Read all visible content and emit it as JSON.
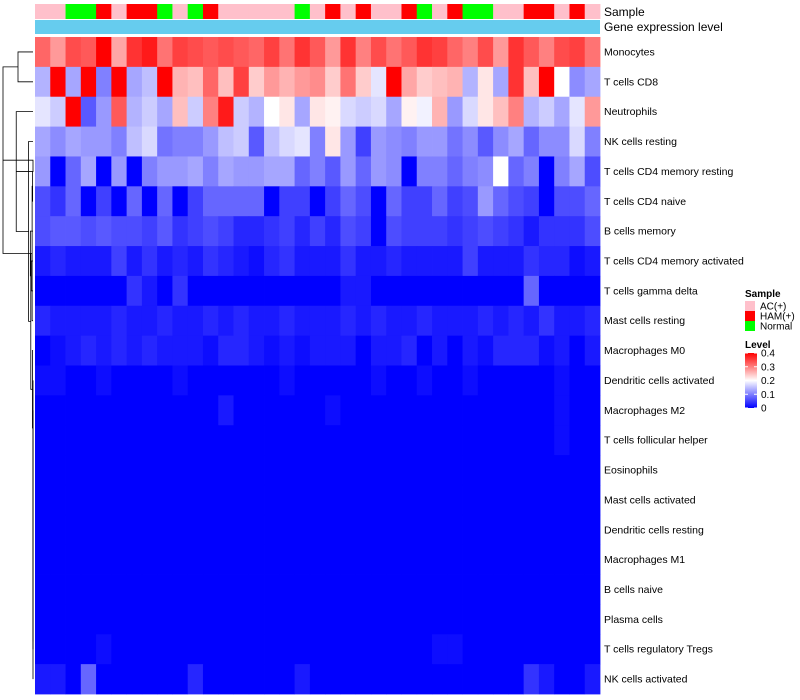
{
  "chart_data": {
    "type": "heatmap",
    "title": "",
    "annotation_rows": [
      {
        "label": "Sample",
        "key": "sample"
      },
      {
        "label": "Gene expression level",
        "key": "gene_expression"
      }
    ],
    "annotation_gene_expression_color": "#66ccee",
    "row_labels": [
      "Monocytes",
      "T cells CD8",
      "Neutrophils",
      "NK cells resting",
      "T cells CD4 memory resting",
      "T cells CD4 naive",
      "B cells memory",
      "T cells CD4 memory activated",
      "T cells gamma delta",
      "Mast cells resting",
      "Macrophages M0",
      "Dendritic cells activated",
      "Macrophages M2",
      "T cells follicular helper",
      "Eosinophils",
      "Mast cells activated",
      "Dendritic cells resting",
      "Macrophages M1",
      "B cells naive",
      "Plasma cells",
      "T cells regulatory  Tregs",
      "NK cells activated"
    ],
    "samples": [
      "AC(+)",
      "AC(+)",
      "Normal",
      "Normal",
      "HAM(+)",
      "AC(+)",
      "HAM(+)",
      "HAM(+)",
      "Normal",
      "AC(+)",
      "Normal",
      "HAM(+)",
      "AC(+)",
      "AC(+)",
      "AC(+)",
      "AC(+)",
      "AC(+)",
      "Normal",
      "AC(+)",
      "HAM(+)",
      "AC(+)",
      "HAM(+)",
      "AC(+)",
      "AC(+)",
      "HAM(+)",
      "Normal",
      "AC(+)",
      "HAM(+)",
      "Normal",
      "Normal",
      "AC(+)",
      "AC(+)",
      "HAM(+)",
      "HAM(+)",
      "AC(+)",
      "HAM(+)",
      "AC(+)"
    ],
    "values": [
      [
        0.32,
        0.28,
        0.34,
        0.33,
        0.4,
        0.27,
        0.36,
        0.38,
        0.31,
        0.35,
        0.34,
        0.33,
        0.34,
        0.33,
        0.32,
        0.35,
        0.31,
        0.36,
        0.33,
        0.28,
        0.36,
        0.3,
        0.34,
        0.31,
        0.33,
        0.36,
        0.35,
        0.32,
        0.3,
        0.34,
        0.28,
        0.36,
        0.33,
        0.3,
        0.34,
        0.35,
        0.31
      ],
      [
        0.14,
        0.4,
        0.13,
        0.4,
        0.1,
        0.4,
        0.13,
        0.15,
        0.4,
        0.26,
        0.25,
        0.32,
        0.25,
        0.35,
        0.24,
        0.28,
        0.26,
        0.28,
        0.29,
        0.24,
        0.31,
        0.24,
        0.18,
        0.4,
        0.27,
        0.24,
        0.25,
        0.26,
        0.14,
        0.22,
        0.13,
        0.36,
        0.25,
        0.4,
        0.2,
        0.11,
        0.13
      ],
      [
        0.18,
        0.16,
        0.4,
        0.07,
        0.12,
        0.33,
        0.14,
        0.16,
        0.13,
        0.25,
        0.16,
        0.3,
        0.38,
        0.16,
        0.14,
        0.2,
        0.22,
        0.13,
        0.22,
        0.21,
        0.17,
        0.16,
        0.17,
        0.13,
        0.21,
        0.19,
        0.26,
        0.12,
        0.17,
        0.22,
        0.25,
        0.3,
        0.14,
        0.16,
        0.13,
        0.18,
        0.28
      ],
      [
        0.13,
        0.11,
        0.13,
        0.12,
        0.12,
        0.1,
        0.15,
        0.17,
        0.09,
        0.1,
        0.1,
        0.12,
        0.15,
        0.16,
        0.07,
        0.15,
        0.17,
        0.18,
        0.1,
        0.22,
        0.12,
        0.05,
        0.12,
        0.11,
        0.1,
        0.12,
        0.12,
        0.09,
        0.11,
        0.07,
        0.11,
        0.13,
        0.08,
        0.11,
        0.11,
        0.17,
        0.1
      ],
      [
        0.12,
        0.0,
        0.08,
        0.13,
        0.0,
        0.12,
        0.0,
        0.1,
        0.12,
        0.12,
        0.13,
        0.1,
        0.13,
        0.12,
        0.12,
        0.13,
        0.13,
        0.08,
        0.1,
        0.07,
        0.12,
        0.08,
        0.12,
        0.11,
        0.0,
        0.1,
        0.1,
        0.08,
        0.1,
        0.11,
        0.2,
        0.08,
        0.1,
        0.0,
        0.1,
        0.13,
        0.06
      ],
      [
        0.06,
        0.04,
        0.08,
        0.0,
        0.05,
        0.0,
        0.08,
        0.0,
        0.08,
        0.0,
        0.05,
        0.08,
        0.08,
        0.08,
        0.08,
        0.0,
        0.05,
        0.05,
        0.0,
        0.05,
        0.08,
        0.06,
        0.0,
        0.08,
        0.05,
        0.05,
        0.08,
        0.05,
        0.06,
        0.12,
        0.08,
        0.06,
        0.05,
        0.0,
        0.06,
        0.06,
        0.08
      ],
      [
        0.06,
        0.07,
        0.07,
        0.06,
        0.07,
        0.06,
        0.06,
        0.05,
        0.07,
        0.04,
        0.05,
        0.06,
        0.05,
        0.03,
        0.03,
        0.04,
        0.05,
        0.03,
        0.05,
        0.03,
        0.06,
        0.05,
        0.0,
        0.06,
        0.05,
        0.05,
        0.05,
        0.04,
        0.05,
        0.06,
        0.05,
        0.04,
        0.02,
        0.04,
        0.04,
        0.04,
        0.06
      ],
      [
        0.02,
        0.03,
        0.02,
        0.02,
        0.02,
        0.05,
        0.02,
        0.04,
        0.02,
        0.03,
        0.02,
        0.04,
        0.03,
        0.02,
        0.01,
        0.03,
        0.04,
        0.02,
        0.02,
        0.02,
        0.04,
        0.02,
        0.02,
        0.03,
        0.02,
        0.02,
        0.02,
        0.02,
        0.05,
        0.02,
        0.02,
        0.02,
        0.04,
        0.03,
        0.03,
        0.01,
        0.02
      ],
      [
        0.0,
        0.0,
        0.0,
        0.0,
        0.0,
        0.0,
        0.04,
        0.02,
        0.0,
        0.04,
        0.0,
        0.0,
        0.0,
        0.0,
        0.0,
        0.0,
        0.0,
        0.0,
        0.0,
        0.0,
        0.02,
        0.02,
        0.0,
        0.0,
        0.0,
        0.0,
        0.0,
        0.0,
        0.0,
        0.0,
        0.0,
        0.0,
        0.08,
        0.0,
        0.0,
        0.0,
        0.0
      ],
      [
        0.03,
        0.02,
        0.02,
        0.02,
        0.02,
        0.03,
        0.02,
        0.02,
        0.03,
        0.02,
        0.02,
        0.03,
        0.02,
        0.03,
        0.02,
        0.02,
        0.03,
        0.02,
        0.02,
        0.02,
        0.03,
        0.02,
        0.03,
        0.02,
        0.02,
        0.03,
        0.02,
        0.02,
        0.02,
        0.03,
        0.02,
        0.03,
        0.02,
        0.04,
        0.02,
        0.02,
        0.03
      ],
      [
        0.0,
        0.01,
        0.02,
        0.03,
        0.02,
        0.03,
        0.02,
        0.03,
        0.02,
        0.02,
        0.02,
        0.01,
        0.03,
        0.03,
        0.02,
        0.01,
        0.02,
        0.01,
        0.02,
        0.02,
        0.02,
        0.0,
        0.02,
        0.02,
        0.03,
        0.0,
        0.02,
        0.0,
        0.02,
        0.01,
        0.03,
        0.03,
        0.03,
        0.01,
        0.02,
        0.0,
        0.02
      ],
      [
        0.01,
        0.01,
        0.0,
        0.0,
        0.01,
        0.0,
        0.0,
        0.0,
        0.0,
        0.01,
        0.0,
        0.0,
        0.0,
        0.0,
        0.0,
        0.0,
        0.01,
        0.0,
        0.0,
        0.0,
        0.0,
        0.0,
        0.01,
        0.0,
        0.0,
        0.01,
        0.0,
        0.0,
        0.01,
        0.0,
        0.0,
        0.0,
        0.0,
        0.0,
        0.01,
        0.0,
        0.0
      ],
      [
        0.0,
        0.0,
        0.0,
        0.0,
        0.0,
        0.0,
        0.0,
        0.0,
        0.0,
        0.0,
        0.0,
        0.0,
        0.02,
        0.0,
        0.0,
        0.0,
        0.0,
        0.0,
        0.0,
        0.01,
        0.0,
        0.0,
        0.0,
        0.0,
        0.0,
        0.0,
        0.0,
        0.0,
        0.0,
        0.0,
        0.0,
        0.0,
        0.0,
        0.0,
        0.01,
        0.0,
        0.0
      ],
      [
        0.0,
        0.0,
        0.0,
        0.0,
        0.0,
        0.0,
        0.0,
        0.0,
        0.0,
        0.0,
        0.0,
        0.0,
        0.0,
        0.0,
        0.0,
        0.0,
        0.0,
        0.0,
        0.0,
        0.0,
        0.0,
        0.0,
        0.0,
        0.0,
        0.0,
        0.0,
        0.0,
        0.0,
        0.0,
        0.0,
        0.0,
        0.0,
        0.0,
        0.0,
        0.01,
        0.0,
        0.0
      ],
      [
        0.0,
        0.0,
        0.0,
        0.0,
        0.0,
        0.0,
        0.0,
        0.0,
        0.0,
        0.0,
        0.0,
        0.0,
        0.0,
        0.0,
        0.0,
        0.0,
        0.0,
        0.0,
        0.0,
        0.0,
        0.0,
        0.0,
        0.0,
        0.0,
        0.0,
        0.0,
        0.0,
        0.0,
        0.0,
        0.0,
        0.0,
        0.0,
        0.0,
        0.0,
        0.0,
        0.0,
        0.0
      ],
      [
        0.0,
        0.0,
        0.0,
        0.0,
        0.0,
        0.0,
        0.0,
        0.0,
        0.0,
        0.0,
        0.0,
        0.0,
        0.0,
        0.0,
        0.0,
        0.0,
        0.0,
        0.0,
        0.0,
        0.0,
        0.0,
        0.0,
        0.0,
        0.0,
        0.0,
        0.0,
        0.0,
        0.0,
        0.0,
        0.0,
        0.0,
        0.0,
        0.0,
        0.0,
        0.0,
        0.0,
        0.0
      ],
      [
        0.0,
        0.0,
        0.0,
        0.0,
        0.0,
        0.0,
        0.0,
        0.0,
        0.0,
        0.0,
        0.0,
        0.0,
        0.0,
        0.0,
        0.0,
        0.0,
        0.0,
        0.0,
        0.0,
        0.0,
        0.0,
        0.0,
        0.0,
        0.0,
        0.0,
        0.0,
        0.0,
        0.0,
        0.0,
        0.0,
        0.0,
        0.0,
        0.0,
        0.0,
        0.0,
        0.0,
        0.0
      ],
      [
        0.0,
        0.0,
        0.0,
        0.0,
        0.0,
        0.0,
        0.0,
        0.0,
        0.0,
        0.0,
        0.0,
        0.0,
        0.0,
        0.0,
        0.0,
        0.0,
        0.0,
        0.0,
        0.0,
        0.0,
        0.0,
        0.0,
        0.0,
        0.0,
        0.0,
        0.0,
        0.0,
        0.0,
        0.0,
        0.0,
        0.0,
        0.0,
        0.0,
        0.0,
        0.0,
        0.0,
        0.0
      ],
      [
        0.0,
        0.0,
        0.0,
        0.0,
        0.0,
        0.0,
        0.0,
        0.0,
        0.0,
        0.0,
        0.0,
        0.0,
        0.0,
        0.0,
        0.0,
        0.0,
        0.0,
        0.0,
        0.0,
        0.0,
        0.0,
        0.0,
        0.0,
        0.0,
        0.0,
        0.0,
        0.0,
        0.0,
        0.0,
        0.0,
        0.0,
        0.0,
        0.0,
        0.0,
        0.0,
        0.0,
        0.0
      ],
      [
        0.0,
        0.0,
        0.0,
        0.0,
        0.0,
        0.0,
        0.0,
        0.0,
        0.0,
        0.0,
        0.0,
        0.0,
        0.0,
        0.0,
        0.0,
        0.0,
        0.0,
        0.0,
        0.0,
        0.0,
        0.0,
        0.0,
        0.0,
        0.0,
        0.0,
        0.0,
        0.0,
        0.0,
        0.0,
        0.0,
        0.0,
        0.0,
        0.0,
        0.0,
        0.0,
        0.0,
        0.0
      ],
      [
        0.0,
        0.0,
        0.0,
        0.0,
        0.01,
        0.0,
        0.0,
        0.0,
        0.0,
        0.0,
        0.0,
        0.0,
        0.0,
        0.0,
        0.0,
        0.0,
        0.0,
        0.0,
        0.0,
        0.0,
        0.0,
        0.0,
        0.0,
        0.0,
        0.0,
        0.0,
        0.01,
        0.01,
        0.0,
        0.0,
        0.0,
        0.0,
        0.0,
        0.0,
        0.0,
        0.0,
        0.0
      ],
      [
        0.02,
        0.02,
        0.0,
        0.08,
        0.0,
        0.0,
        0.0,
        0.0,
        0.0,
        0.0,
        0.03,
        0.0,
        0.0,
        0.0,
        0.0,
        0.0,
        0.0,
        0.02,
        0.0,
        0.0,
        0.0,
        0.0,
        0.0,
        0.0,
        0.0,
        0.0,
        0.0,
        0.0,
        0.0,
        0.0,
        0.0,
        0.0,
        0.04,
        0.02,
        0.0,
        0.0,
        0.02
      ]
    ],
    "legend": {
      "position": "right",
      "sample_title": "Sample",
      "sample_levels": [
        {
          "label": "AC(+)",
          "color": "#ffc0cb"
        },
        {
          "label": "HAM(+)",
          "color": "#ff0000"
        },
        {
          "label": "Normal",
          "color": "#00ff00"
        }
      ],
      "level_title": "Level",
      "level_range": [
        0,
        0.4
      ],
      "level_ticks": [
        0.4,
        0.3,
        0.2,
        0.1,
        0
      ],
      "level_tick_labels": [
        "0.4",
        "0.3",
        "0.2",
        "0.1",
        "0"
      ]
    },
    "color_scale": {
      "low": "#0000ff",
      "mid": "#ffffff",
      "high": "#ff0000",
      "midpoint": 0.2
    }
  },
  "dendrogram": {
    "leaf_order": [
      0,
      1,
      2,
      3,
      4,
      5,
      6,
      7,
      8,
      9,
      10,
      11,
      12,
      13,
      14,
      15,
      16,
      17,
      18,
      19,
      20,
      21
    ],
    "merges": [
      [
        14,
        15,
        0.0
      ],
      [
        16,
        17,
        0.0
      ],
      [
        18,
        19,
        0.0
      ],
      [
        22,
        23,
        0.0
      ],
      [
        24,
        25,
        0.0
      ],
      [
        26,
        20,
        0.0
      ],
      [
        27,
        21,
        0.0
      ],
      [
        28,
        13,
        0.0
      ],
      [
        29,
        12,
        0.0
      ],
      [
        30,
        11,
        0.0
      ],
      [
        4,
        5,
        0.45
      ],
      [
        31,
        10,
        0.6
      ],
      [
        32,
        9,
        1.0
      ],
      [
        7,
        8,
        2.0
      ],
      [
        33,
        34,
        2.5
      ],
      [
        35,
        6,
        3.0
      ],
      [
        36,
        3,
        5.0
      ],
      [
        0,
        1,
        17.0
      ],
      [
        38,
        2,
        19.0
      ],
      [
        37,
        39,
        34.0
      ],
      [
        40,
        41,
        0.0
      ]
    ]
  }
}
